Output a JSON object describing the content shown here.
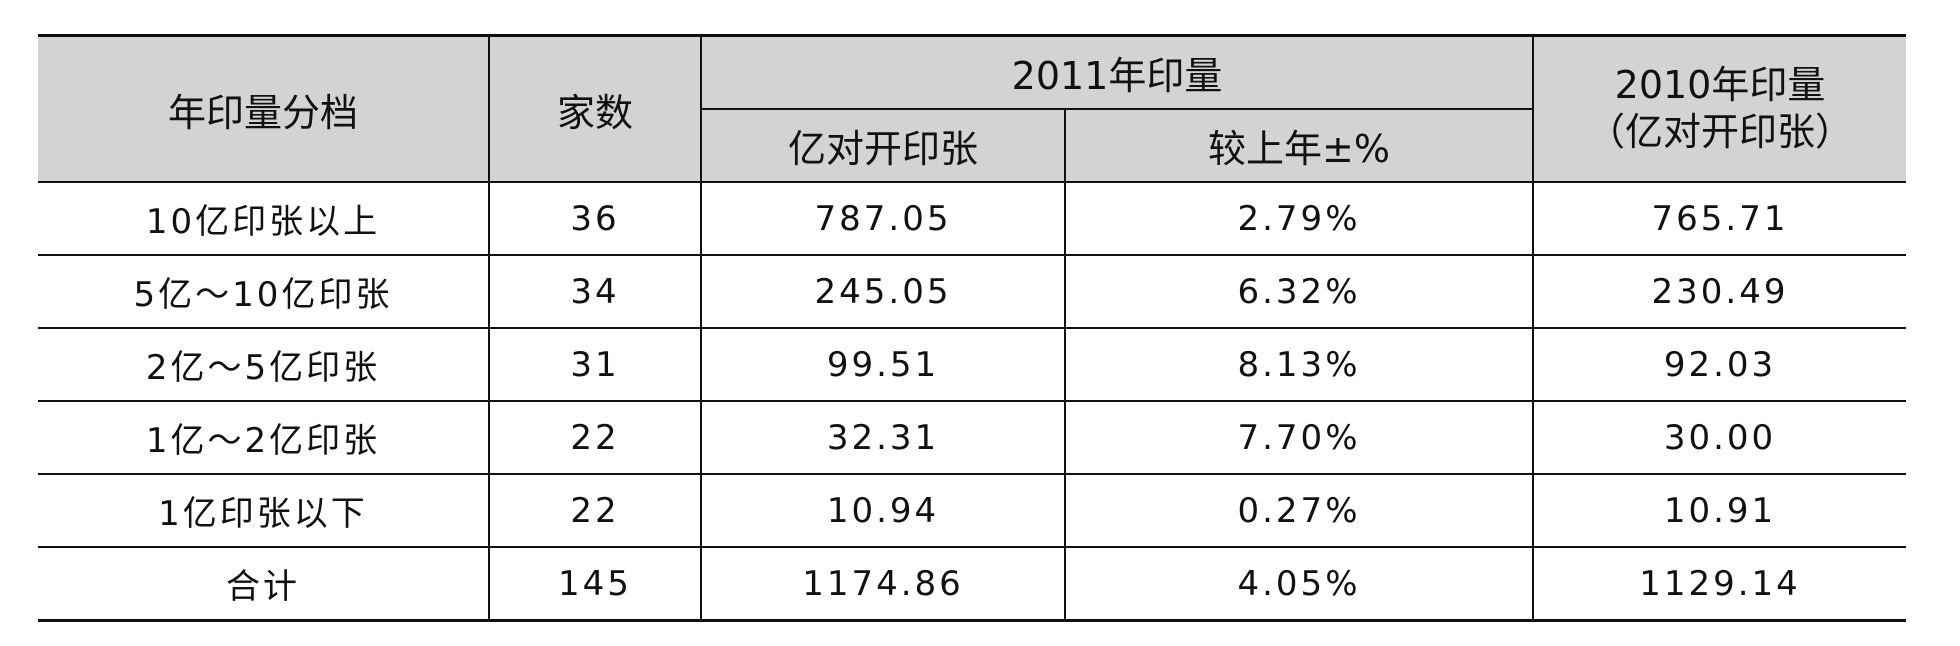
{
  "table": {
    "header": {
      "range": "年印量分档",
      "count": "家数",
      "y2011": "2011年印量",
      "y2011_amount": "亿对开印张",
      "y2011_change": "较上年±%",
      "y2010": "2010年印量",
      "y2010_unit": "（亿对开印张）"
    },
    "rows": [
      [
        "10亿印张以上",
        "36",
        "787.05",
        "2.79%",
        "765.71"
      ],
      [
        "5亿～10亿印张",
        "34",
        "245.05",
        "6.32%",
        "230.49"
      ],
      [
        "2亿～5亿印张",
        "31",
        "99.51",
        "8.13%",
        "92.03"
      ],
      [
        "1亿～2亿印张",
        "22",
        "32.31",
        "7.70%",
        "30.00"
      ],
      [
        "1亿印张以下",
        "22",
        "10.94",
        "0.27%",
        "10.91"
      ],
      [
        "合计",
        "145",
        "1174.86",
        "4.05%",
        "1129.14"
      ]
    ]
  }
}
